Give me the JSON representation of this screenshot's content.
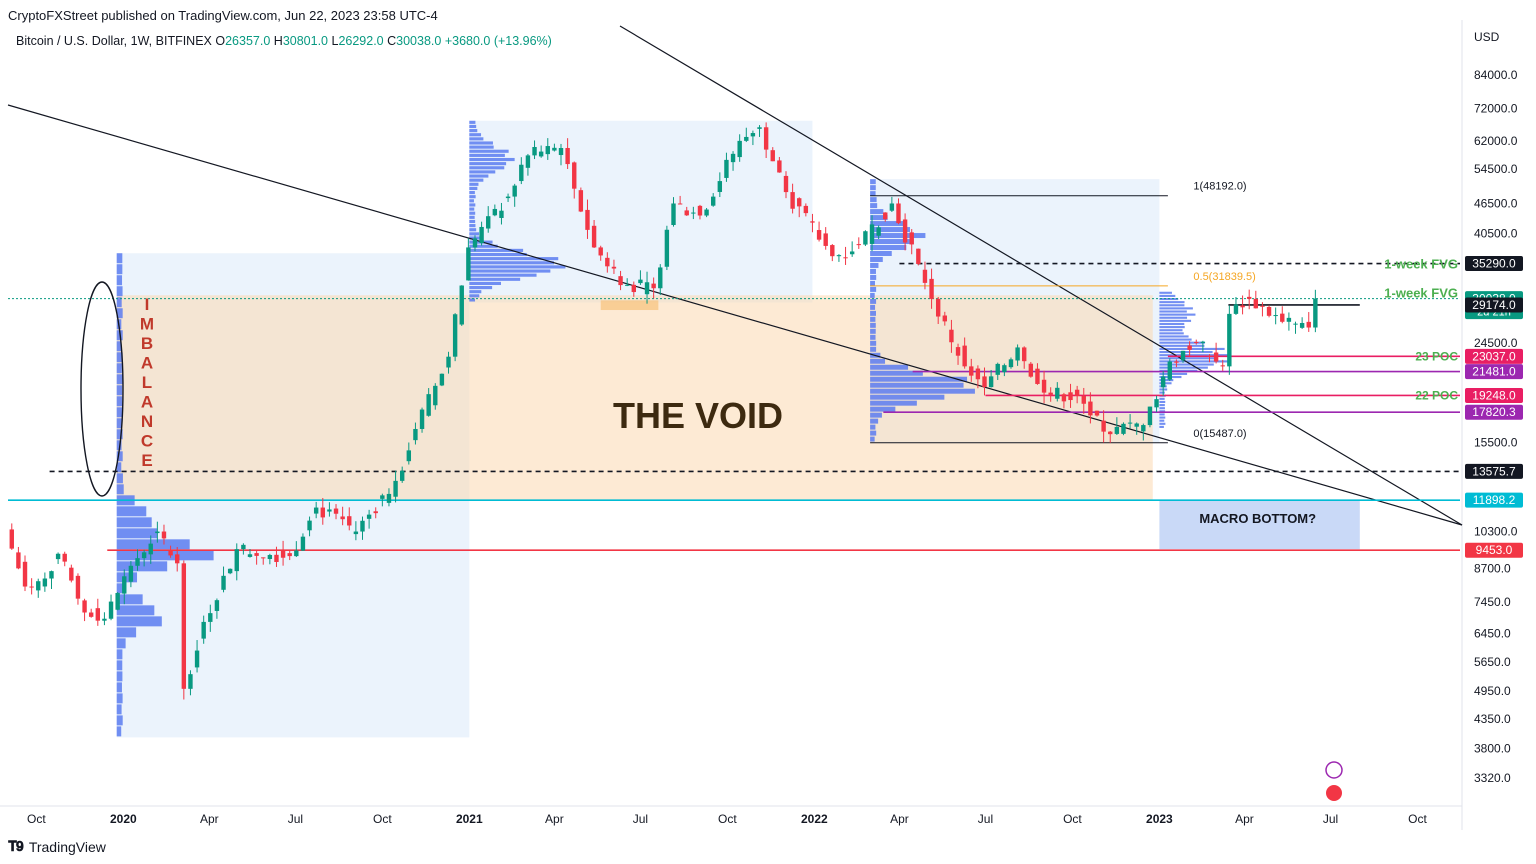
{
  "header": {
    "publisher": "CryptoFXStreet published on TradingView.com, Jun 22, 2023 23:58 UTC-4"
  },
  "symbol": {
    "name": "Bitcoin / U.S. Dollar, 1W, BITFINEX",
    "o_label": "O",
    "o": "26357.0",
    "h_label": "H",
    "h": "30801.0",
    "l_label": "L",
    "l": "26292.0",
    "c_label": "C",
    "c": "30038.0",
    "change": "+3680.0 (+13.96%)"
  },
  "footer": {
    "logo_text": "TradingView"
  },
  "colors": {
    "up": "#089981",
    "down": "#f23645",
    "volume_profile": "#5b7bf0",
    "void": "#fbd9b0",
    "fib": "#f5a623",
    "fvg": "#4caf50"
  },
  "chart_data": {
    "type": "candlestick",
    "currency": "USD",
    "y_scale": "log",
    "ylim": [
      3000,
      95000
    ],
    "xlim": [
      "2019-09-01",
      "2023-11-15"
    ],
    "y_ticks": [
      "84000.0",
      "72000.0",
      "62000.0",
      "54500.0",
      "46500.0",
      "40500.0",
      "24500.0",
      "15500.0",
      "10300.0",
      "8700.0",
      "7450.0",
      "6450.0",
      "5650.0",
      "4950.0",
      "4350.0",
      "3800.0",
      "3320.0"
    ],
    "x_ticks": [
      {
        "label": "Oct",
        "date": "2019-10-01",
        "bold": false
      },
      {
        "label": "2020",
        "date": "2020-01-01",
        "bold": true
      },
      {
        "label": "Apr",
        "date": "2020-04-01",
        "bold": false
      },
      {
        "label": "Jul",
        "date": "2020-07-01",
        "bold": false
      },
      {
        "label": "Oct",
        "date": "2020-10-01",
        "bold": false
      },
      {
        "label": "2021",
        "date": "2021-01-01",
        "bold": true
      },
      {
        "label": "Apr",
        "date": "2021-04-01",
        "bold": false
      },
      {
        "label": "Jul",
        "date": "2021-07-01",
        "bold": false
      },
      {
        "label": "Oct",
        "date": "2021-10-01",
        "bold": false
      },
      {
        "label": "2022",
        "date": "2022-01-01",
        "bold": true
      },
      {
        "label": "Apr",
        "date": "2022-04-01",
        "bold": false
      },
      {
        "label": "Jul",
        "date": "2022-07-01",
        "bold": false
      },
      {
        "label": "Oct",
        "date": "2022-10-01",
        "bold": false
      },
      {
        "label": "2023",
        "date": "2023-01-01",
        "bold": true
      },
      {
        "label": "Apr",
        "date": "2023-04-01",
        "bold": false
      },
      {
        "label": "Jul",
        "date": "2023-07-01",
        "bold": false
      },
      {
        "label": "Oct",
        "date": "2023-10-01",
        "bold": false
      }
    ],
    "price_path": [
      [
        "2019-09-02",
        10400
      ],
      [
        "2019-09-23",
        8000
      ],
      [
        "2019-10-14",
        8300
      ],
      [
        "2019-10-28",
        9300
      ],
      [
        "2019-11-25",
        7100
      ],
      [
        "2019-12-16",
        6900
      ],
      [
        "2020-01-13",
        8800
      ],
      [
        "2020-02-10",
        10300
      ],
      [
        "2020-03-02",
        8900
      ],
      [
        "2020-03-09",
        5000
      ],
      [
        "2020-03-30",
        6800
      ],
      [
        "2020-05-04",
        9500
      ],
      [
        "2020-06-29",
        9200
      ],
      [
        "2020-07-27",
        11500
      ],
      [
        "2020-09-07",
        10300
      ],
      [
        "2020-10-19",
        13000
      ],
      [
        "2020-11-09",
        16500
      ],
      [
        "2020-12-14",
        23000
      ],
      [
        "2021-01-04",
        38000
      ],
      [
        "2021-02-15",
        48000
      ],
      [
        "2021-03-08",
        58000
      ],
      [
        "2021-04-12",
        60000
      ],
      [
        "2021-05-17",
        38000
      ],
      [
        "2021-06-21",
        32000
      ],
      [
        "2021-07-19",
        31500
      ],
      [
        "2021-08-09",
        46500
      ],
      [
        "2021-09-06",
        44000
      ],
      [
        "2021-10-18",
        62000
      ],
      [
        "2021-11-08",
        66000
      ],
      [
        "2021-12-06",
        49000
      ],
      [
        "2022-01-24",
        36500
      ],
      [
        "2022-02-21",
        38500
      ],
      [
        "2022-03-28",
        46500
      ],
      [
        "2022-05-09",
        30000
      ],
      [
        "2022-06-13",
        22000
      ],
      [
        "2022-07-04",
        20000
      ],
      [
        "2022-08-08",
        24000
      ],
      [
        "2022-09-05",
        19500
      ],
      [
        "2022-10-10",
        19200
      ],
      [
        "2022-11-07",
        16300
      ],
      [
        "2022-12-19",
        16800
      ],
      [
        "2023-01-16",
        22500
      ],
      [
        "2023-02-13",
        24500
      ],
      [
        "2023-03-13",
        22000
      ],
      [
        "2023-03-20",
        28000
      ],
      [
        "2023-04-10",
        30000
      ],
      [
        "2023-05-15",
        27000
      ],
      [
        "2023-06-12",
        26300
      ],
      [
        "2023-06-19",
        30038
      ]
    ],
    "horizontal_levels": [
      {
        "label": "35290.0",
        "price": 35290,
        "color": "#131722",
        "style": "dashed",
        "from": "2022-04-01",
        "to": "2023-11-15"
      },
      {
        "label": "30038.0",
        "sublabel": "2d 21h",
        "price": 30038,
        "color": "#089981",
        "style": "dotted",
        "from": "2019-09-01",
        "to": "2023-11-15"
      },
      {
        "label": "29174.0",
        "price": 29174,
        "color": "#131722",
        "style": "solid",
        "from": "2023-03-15",
        "to": "2023-08-01"
      },
      {
        "label": "23037.0",
        "price": 23037,
        "color": "#e91e63",
        "style": "solid",
        "from": "2023-01-10",
        "to": "2023-11-15"
      },
      {
        "label": "21481.0",
        "price": 21481,
        "color": "#9c27b0",
        "style": "solid",
        "from": "2022-04-15",
        "to": "2023-11-15"
      },
      {
        "label": "19248.0",
        "price": 19248,
        "color": "#e91e63",
        "style": "solid",
        "from": "2022-07-01",
        "to": "2023-11-15"
      },
      {
        "label": "17820.3",
        "price": 17820.3,
        "color": "#9c27b0",
        "style": "solid",
        "from": "2022-03-15",
        "to": "2023-11-15"
      },
      {
        "label": "13575.7",
        "price": 13575.7,
        "color": "#131722",
        "style": "dashed",
        "from": "2019-10-15",
        "to": "2023-11-15"
      },
      {
        "label": "11898.2",
        "price": 11898.2,
        "color": "#00bcd4",
        "style": "solid",
        "from": "2019-09-01",
        "to": "2023-11-15"
      },
      {
        "label": "9453.0",
        "price": 9453,
        "color": "#f23645",
        "style": "solid",
        "from": "2019-12-15",
        "to": "2023-11-15"
      }
    ],
    "fib": [
      {
        "label": "1(48192.0)",
        "price": 48192
      },
      {
        "label": "0.5(31839.5)",
        "price": 31839.5
      },
      {
        "label": "0(15487.0)",
        "price": 15487
      }
    ],
    "annotations": [
      {
        "text": "1-week FVG",
        "price": 35290
      },
      {
        "text": "1-week FVG",
        "price": 30900
      },
      {
        "text": "23 POC",
        "price": 23037
      },
      {
        "text": "22 POC",
        "price": 19248
      },
      {
        "text": "THE VOID"
      },
      {
        "text": "IMBALANCE"
      },
      {
        "text": "MACRO BOTTOM?"
      }
    ]
  }
}
